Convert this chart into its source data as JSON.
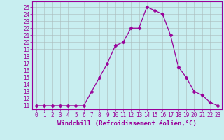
{
  "x": [
    0,
    1,
    2,
    3,
    4,
    5,
    6,
    7,
    8,
    9,
    10,
    11,
    12,
    13,
    14,
    15,
    16,
    17,
    18,
    19,
    20,
    21,
    22,
    23
  ],
  "y": [
    11,
    11,
    11,
    11,
    11,
    11,
    11,
    13,
    15,
    17,
    19.5,
    20,
    22,
    22,
    25,
    24.5,
    24,
    21,
    16.5,
    15,
    13,
    12.5,
    11.5,
    11
  ],
  "line_color": "#990099",
  "marker": "D",
  "marker_size": 2.5,
  "bg_color": "#c8eef0",
  "grid_color": "#aabbbb",
  "xlabel": "Windchill (Refroidissement éolien,°C)",
  "xlim": [
    -0.5,
    23.5
  ],
  "ylim": [
    10.5,
    25.8
  ],
  "xticks": [
    0,
    1,
    2,
    3,
    4,
    5,
    6,
    7,
    8,
    9,
    10,
    11,
    12,
    13,
    14,
    15,
    16,
    17,
    18,
    19,
    20,
    21,
    22,
    23
  ],
  "yticks": [
    11,
    12,
    13,
    14,
    15,
    16,
    17,
    18,
    19,
    20,
    21,
    22,
    23,
    24,
    25
  ],
  "tick_color": "#990099",
  "label_color": "#990099",
  "font_size_ticks": 5.5,
  "font_size_label": 6.5
}
